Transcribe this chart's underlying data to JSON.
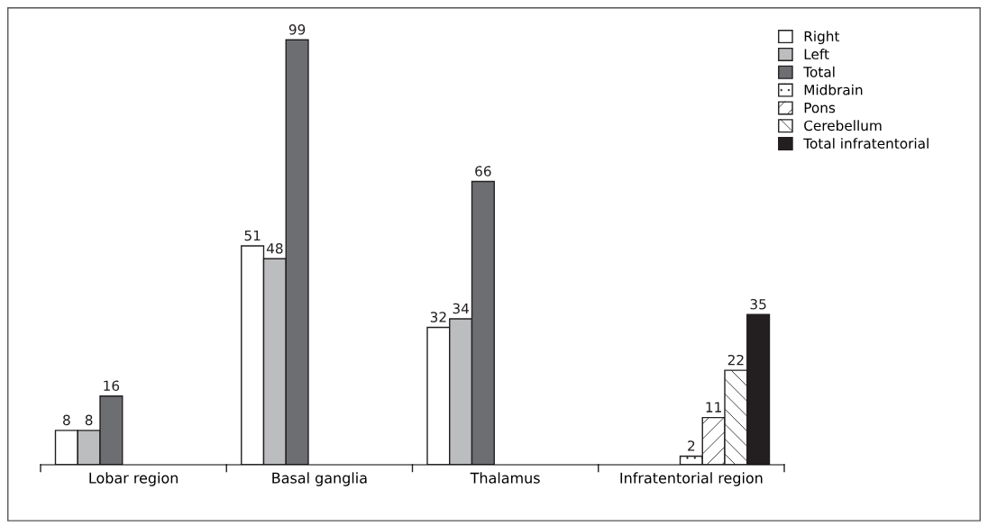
{
  "chart_data": {
    "type": "bar",
    "categories": [
      "Lobar region",
      "Basal ganglia",
      "Thalamus",
      "Infratentorial region"
    ],
    "series": [
      {
        "name": "Right",
        "color": "#ffffff",
        "values": [
          8,
          51,
          32,
          null
        ]
      },
      {
        "name": "Left",
        "color": "#bcbdbf",
        "values": [
          8,
          48,
          34,
          null
        ]
      },
      {
        "name": "Total",
        "color": "#6d6e71",
        "values": [
          16,
          99,
          66,
          null
        ]
      },
      {
        "name": "Midbrain",
        "color": "#ffffff",
        "values": [
          null,
          null,
          null,
          2
        ]
      },
      {
        "name": "Pons",
        "color": "#ffffff",
        "values": [
          null,
          null,
          null,
          11
        ]
      },
      {
        "name": "Cerebellum",
        "color": "#ffffff",
        "values": [
          null,
          null,
          null,
          22
        ]
      },
      {
        "name": "Total infratentorial",
        "color": "#231f20",
        "values": [
          null,
          null,
          null,
          35
        ]
      }
    ],
    "data_labels": true,
    "legend": "top right",
    "grid": false
  }
}
